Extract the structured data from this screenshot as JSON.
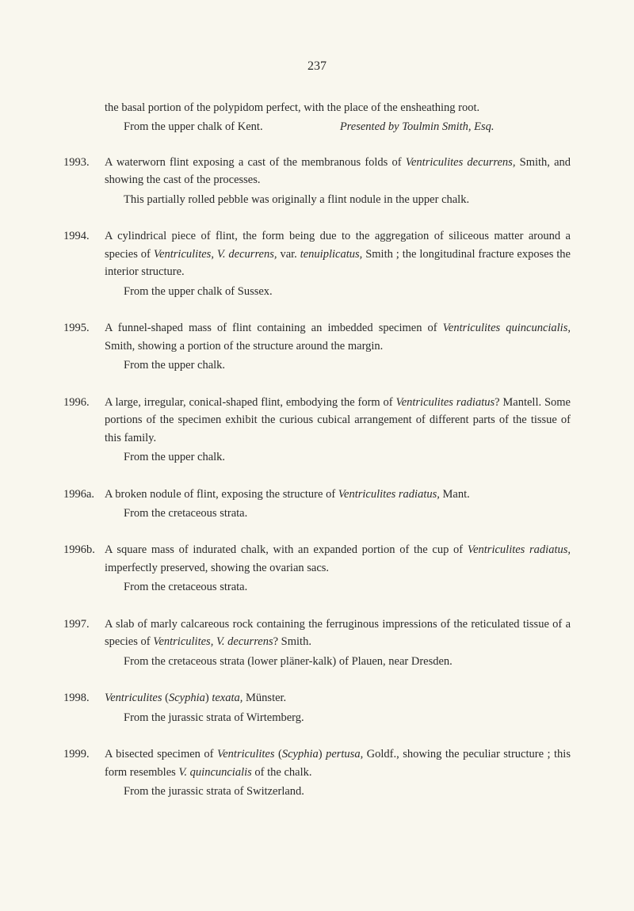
{
  "page_number": "237",
  "intro": {
    "line1": "the basal portion of the polypidom perfect, with the place of the ensheathing root.",
    "line2_left": "From the upper chalk of Kent.",
    "line2_right": "Presented by Toulmin Smith, Esq."
  },
  "entries": [
    {
      "number": "1993.",
      "paragraphs": [
        {
          "text": "A waterworn flint exposing a cast of the membranous folds of ",
          "italic1": "Ventriculites decurrens,",
          "text2": " Smith, and showing the cast of the processes."
        },
        {
          "text": "This partially rolled pebble was originally a flint nodule in the upper chalk.",
          "indent": true
        }
      ]
    },
    {
      "number": "1994.",
      "paragraphs": [
        {
          "text": "A cylindrical piece of flint, the form being due to the aggregation of siliceous matter around a species of ",
          "italic1": "Ventriculites, V. decurrens,",
          "text2": " var. ",
          "italic2": "tenuiplicatus,",
          "text3": " Smith ; the longitudinal fracture exposes the interior structure."
        },
        {
          "text": "From the upper chalk of Sussex.",
          "indent": true
        }
      ]
    },
    {
      "number": "1995.",
      "paragraphs": [
        {
          "text": "A funnel-shaped mass of flint containing an imbedded specimen of ",
          "italic1": "Ventriculites quincuncialis,",
          "text2": " Smith, showing a portion of the structure around the margin."
        },
        {
          "text": "From the upper chalk.",
          "indent": true
        }
      ]
    },
    {
      "number": "1996.",
      "paragraphs": [
        {
          "text": "A large, irregular, conical-shaped flint, embodying the form of ",
          "italic1": "Ventriculites radiatus",
          "text2": "? Mantell. Some portions of the specimen exhibit the curious cubical arrangement of different parts of the tissue of this family."
        },
        {
          "text": "From the upper chalk.",
          "indent": true
        }
      ]
    },
    {
      "number": "1996a.",
      "paragraphs": [
        {
          "text": "A broken nodule of flint, exposing the structure of ",
          "italic1": "Ventriculites radiatus,",
          "text2": " Mant."
        },
        {
          "text": "From the cretaceous strata.",
          "indent": true
        }
      ]
    },
    {
      "number": "1996b.",
      "paragraphs": [
        {
          "text": "A square mass of indurated chalk, with an expanded portion of the cup of ",
          "italic1": "Ventriculites radiatus,",
          "text2": " imperfectly preserved, showing the ovarian sacs."
        },
        {
          "text": "From the cretaceous strata.",
          "indent": true
        }
      ]
    },
    {
      "number": "1997.",
      "paragraphs": [
        {
          "text": "A slab of marly calcareous rock containing the ferruginous impressions of the reticulated tissue of a species of ",
          "italic1": "Ventriculites, V. decurrens",
          "text2": "? Smith."
        },
        {
          "text": "From the cretaceous strata (lower pläner-kalk) of Plauen, near Dresden.",
          "indent": true
        }
      ]
    },
    {
      "number": "1998.",
      "paragraphs": [
        {
          "italic1": "Ventriculites",
          "text": " (",
          "italic2": "Scyphia",
          "text2": ") ",
          "italic3": "texata,",
          "text3": " Münster."
        },
        {
          "text": "From the jurassic strata of Wirtemberg.",
          "indent": true
        }
      ]
    },
    {
      "number": "1999.",
      "paragraphs": [
        {
          "text": "A bisected specimen of ",
          "italic1": "Ventriculites",
          "text2": " (",
          "italic2": "Scyphia",
          "text3": ") ",
          "italic3": "pertusa,",
          "text4": " Goldf., showing the peculiar structure ; this form resembles ",
          "italic4": "V. quincuncialis",
          "text5": " of the chalk."
        },
        {
          "text": "From the jurassic strata of Switzerland.",
          "indent": true
        }
      ]
    }
  ]
}
